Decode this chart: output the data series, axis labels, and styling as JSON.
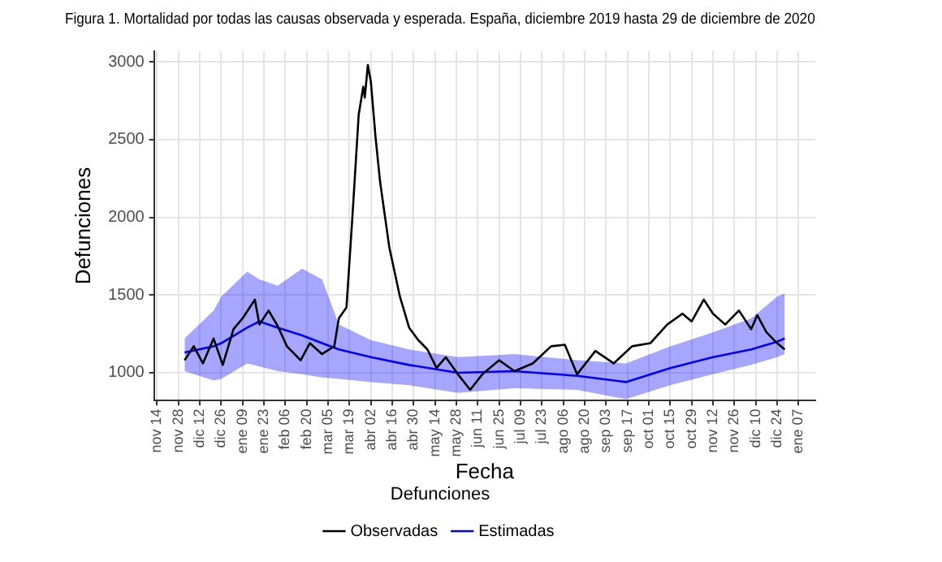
{
  "chart_data": {
    "type": "line",
    "title": "Figura 1. Mortalidad por todas las causas observada y esperada. España, diciembre 2019 hasta 29 de diciembre de 2020",
    "xlabel": "Fecha",
    "ylabel": "Defunciones",
    "legend_title": "Defunciones",
    "legend": "bottom",
    "grid": true,
    "marker": "none",
    "line_style": "solid",
    "xlim": [
      "2019-11-12",
      "2021-01-18"
    ],
    "ylim": [
      820,
      3070
    ],
    "yticks": [
      1000,
      1500,
      2000,
      2500,
      3000
    ],
    "xticks": [
      {
        "value": "2019-11-14",
        "label": "nov 14"
      },
      {
        "value": "2019-11-28",
        "label": "nov 28"
      },
      {
        "value": "2019-12-12",
        "label": "dic 12"
      },
      {
        "value": "2019-12-26",
        "label": "dic 26"
      },
      {
        "value": "2020-01-09",
        "label": "ene 09"
      },
      {
        "value": "2020-01-23",
        "label": "ene 23"
      },
      {
        "value": "2020-02-06",
        "label": "feb 06"
      },
      {
        "value": "2020-02-20",
        "label": "feb 20"
      },
      {
        "value": "2020-03-05",
        "label": "mar 05"
      },
      {
        "value": "2020-03-19",
        "label": "mar 19"
      },
      {
        "value": "2020-04-02",
        "label": "abr 02"
      },
      {
        "value": "2020-04-16",
        "label": "abr 16"
      },
      {
        "value": "2020-04-30",
        "label": "abr 30"
      },
      {
        "value": "2020-05-14",
        "label": "may 14"
      },
      {
        "value": "2020-05-28",
        "label": "may 28"
      },
      {
        "value": "2020-06-11",
        "label": "jun 11"
      },
      {
        "value": "2020-06-25",
        "label": "jun 25"
      },
      {
        "value": "2020-07-09",
        "label": "jul 09"
      },
      {
        "value": "2020-07-23",
        "label": "jul 23"
      },
      {
        "value": "2020-08-06",
        "label": "ago 06"
      },
      {
        "value": "2020-08-20",
        "label": "ago 20"
      },
      {
        "value": "2020-09-03",
        "label": "sep 03"
      },
      {
        "value": "2020-09-17",
        "label": "sep 17"
      },
      {
        "value": "2020-10-01",
        "label": "oct 01"
      },
      {
        "value": "2020-10-15",
        "label": "oct 15"
      },
      {
        "value": "2020-10-29",
        "label": "oct 29"
      },
      {
        "value": "2020-11-12",
        "label": "nov 12"
      },
      {
        "value": "2020-11-26",
        "label": "nov 26"
      },
      {
        "value": "2020-12-10",
        "label": "dic 10"
      },
      {
        "value": "2020-12-24",
        "label": "dic 24"
      },
      {
        "value": "2021-01-07",
        "label": "ene 07"
      }
    ],
    "series": [
      {
        "name": "Estimadas",
        "color": "#0000ff",
        "x": [
          "2019-12-02",
          "2019-12-21",
          "2019-12-26",
          "2020-01-12",
          "2020-01-20",
          "2020-02-01",
          "2020-02-17",
          "2020-03-01",
          "2020-03-12",
          "2020-04-02",
          "2020-04-27",
          "2020-05-29",
          "2020-07-05",
          "2020-08-15",
          "2020-09-16",
          "2020-10-15",
          "2020-11-12",
          "2020-12-07",
          "2020-12-24",
          "2020-12-29"
        ],
        "values": [
          1130,
          1170,
          1190,
          1290,
          1330,
          1290,
          1240,
          1190,
          1150,
          1100,
          1050,
          1000,
          1010,
          980,
          940,
          1030,
          1100,
          1150,
          1200,
          1220
        ],
        "lower": [
          1010,
          950,
          960,
          1060,
          1040,
          1010,
          990,
          970,
          960,
          940,
          920,
          870,
          900,
          890,
          830,
          920,
          990,
          1050,
          1100,
          1120
        ],
        "upper": [
          1220,
          1400,
          1490,
          1650,
          1600,
          1560,
          1670,
          1600,
          1310,
          1210,
          1150,
          1100,
          1120,
          1080,
          1060,
          1170,
          1260,
          1350,
          1490,
          1510
        ]
      },
      {
        "name": "Observadas",
        "color": "#000000",
        "x": [
          "2019-12-02",
          "2019-12-08",
          "2019-12-14",
          "2019-12-21",
          "2019-12-27",
          "2020-01-03",
          "2020-01-09",
          "2020-01-17",
          "2020-01-20",
          "2020-01-26",
          "2020-02-01",
          "2020-02-07",
          "2020-02-16",
          "2020-02-22",
          "2020-03-01",
          "2020-03-09",
          "2020-03-12",
          "2020-03-17",
          "2020-03-21",
          "2020-03-25",
          "2020-03-28",
          "2020-03-29",
          "2020-03-31",
          "2020-04-02",
          "2020-04-05",
          "2020-04-08",
          "2020-04-14",
          "2020-04-21",
          "2020-04-27",
          "2020-05-03",
          "2020-05-09",
          "2020-05-15",
          "2020-05-21",
          "2020-05-29",
          "2020-06-06",
          "2020-06-14",
          "2020-06-25",
          "2020-07-05",
          "2020-07-17",
          "2020-07-29",
          "2020-08-07",
          "2020-08-15",
          "2020-08-27",
          "2020-09-08",
          "2020-09-20",
          "2020-10-02",
          "2020-10-13",
          "2020-10-23",
          "2020-10-29",
          "2020-11-06",
          "2020-11-12",
          "2020-11-20",
          "2020-11-29",
          "2020-12-07",
          "2020-12-11",
          "2020-12-17",
          "2020-12-24",
          "2020-12-29"
        ],
        "values": [
          1080,
          1170,
          1060,
          1220,
          1050,
          1280,
          1350,
          1470,
          1310,
          1400,
          1300,
          1170,
          1080,
          1190,
          1120,
          1170,
          1350,
          1420,
          2020,
          2660,
          2840,
          2770,
          2980,
          2870,
          2520,
          2230,
          1810,
          1490,
          1290,
          1210,
          1150,
          1030,
          1100,
          990,
          890,
          990,
          1080,
          1010,
          1060,
          1170,
          1180,
          990,
          1140,
          1060,
          1170,
          1190,
          1310,
          1380,
          1330,
          1470,
          1380,
          1310,
          1400,
          1280,
          1370,
          1260,
          1190,
          1150
        ]
      }
    ]
  }
}
